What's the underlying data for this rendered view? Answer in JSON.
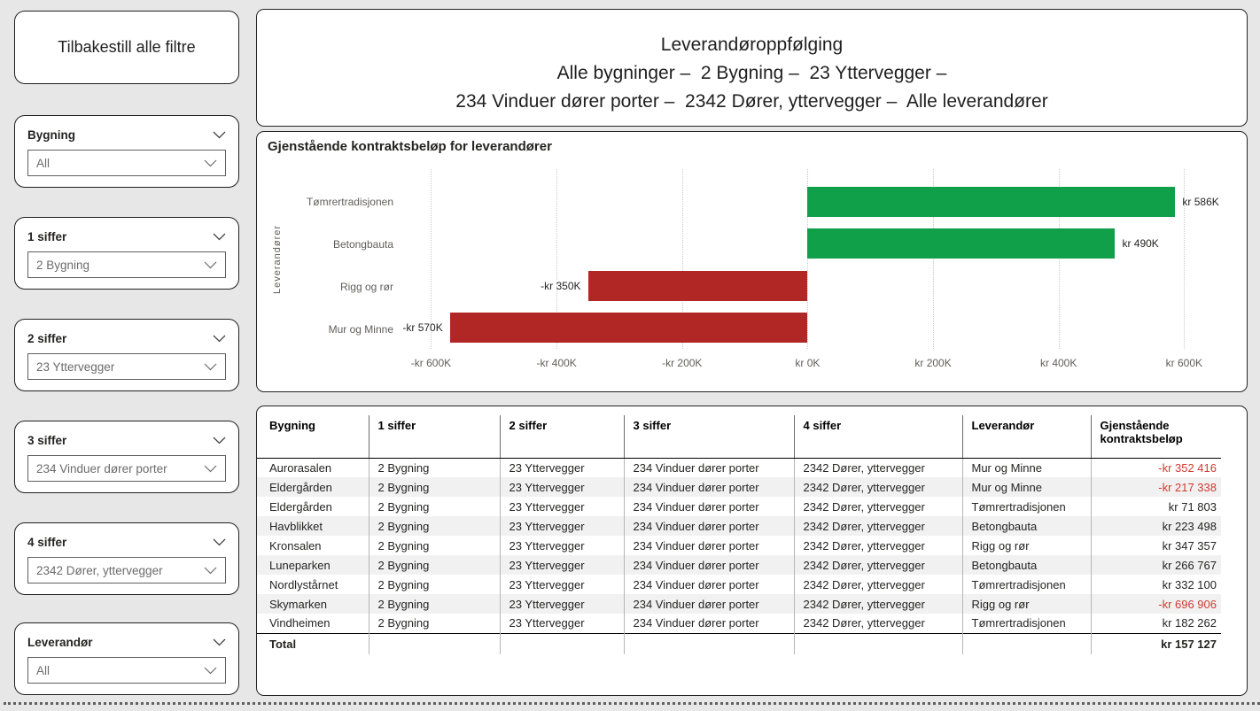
{
  "colors": {
    "background": "#e7e7e7",
    "panel_border": "#252423",
    "positive_bar": "#10a04a",
    "negative_bar": "#b02725",
    "negative_text": "#d03b31"
  },
  "sidebar": {
    "reset_button_label": "Tilbakestill alle filtre",
    "slicers": [
      {
        "label": "Bygning",
        "value": "All"
      },
      {
        "label": "1 siffer",
        "value": "2 Bygning"
      },
      {
        "label": "2 siffer",
        "value": "23 Yttervegger"
      },
      {
        "label": "3 siffer",
        "value": "234 Vinduer dører porter"
      },
      {
        "label": "4 siffer",
        "value": "2342 Dører, yttervegger"
      },
      {
        "label": "Leverandør",
        "value": "All"
      }
    ]
  },
  "header": {
    "title": "Leverandøroppfølging",
    "subtitle_line1": "Alle bygninger –  2 Bygning –  23 Yttervegger –",
    "subtitle_line2": "234 Vinduer dører porter –  2342 Dører, yttervegger –  Alle leverandører"
  },
  "chart_data": {
    "type": "bar",
    "orientation": "horizontal",
    "title": "Gjenstående kontraktsbeløp for leverandører",
    "ylabel": "Leverandører",
    "categories": [
      "Tømrertradisjonen",
      "Betongbauta",
      "Rigg og rør",
      "Mur og Minne"
    ],
    "values": [
      586000,
      490000,
      -350000,
      -570000
    ],
    "value_labels": [
      "kr 586K",
      "kr 490K",
      "-kr 350K",
      "-kr 570K"
    ],
    "xlim": [
      -660000,
      680000
    ],
    "x_ticks": [
      -600000,
      -400000,
      -200000,
      0,
      200000,
      400000,
      600000
    ],
    "x_tick_labels": [
      "-kr 600K",
      "-kr 400K",
      "-kr 200K",
      "kr 0K",
      "kr 200K",
      "kr 400K",
      "kr 600K"
    ],
    "positive_color": "#10a04a",
    "negative_color": "#b02725",
    "grid": "vertical-dotted",
    "legend": "none"
  },
  "table": {
    "columns": [
      "Bygning",
      "1 siffer",
      "2 siffer",
      "3 siffer",
      "4 siffer",
      "Leverandør",
      "Gjenstående kontraktsbeløp"
    ],
    "rows": [
      {
        "cells": [
          "Aurorasalen",
          "2 Bygning",
          "23 Yttervegger",
          "234 Vinduer dører porter",
          "2342 Dører, yttervegger",
          "Mur og Minne"
        ],
        "value": "-kr 352 416",
        "negative": true
      },
      {
        "cells": [
          "Eldergården",
          "2 Bygning",
          "23 Yttervegger",
          "234 Vinduer dører porter",
          "2342 Dører, yttervegger",
          "Mur og Minne"
        ],
        "value": "-kr 217 338",
        "negative": true
      },
      {
        "cells": [
          "Eldergården",
          "2 Bygning",
          "23 Yttervegger",
          "234 Vinduer dører porter",
          "2342 Dører, yttervegger",
          "Tømrertradisjonen"
        ],
        "value": "kr 71 803",
        "negative": false
      },
      {
        "cells": [
          "Havblikket",
          "2 Bygning",
          "23 Yttervegger",
          "234 Vinduer dører porter",
          "2342 Dører, yttervegger",
          "Betongbauta"
        ],
        "value": "kr 223 498",
        "negative": false
      },
      {
        "cells": [
          "Kronsalen",
          "2 Bygning",
          "23 Yttervegger",
          "234 Vinduer dører porter",
          "2342 Dører, yttervegger",
          "Rigg og rør"
        ],
        "value": "kr 347 357",
        "negative": false
      },
      {
        "cells": [
          "Luneparken",
          "2 Bygning",
          "23 Yttervegger",
          "234 Vinduer dører porter",
          "2342 Dører, yttervegger",
          "Betongbauta"
        ],
        "value": "kr 266 767",
        "negative": false
      },
      {
        "cells": [
          "Nordlystårnet",
          "2 Bygning",
          "23 Yttervegger",
          "234 Vinduer dører porter",
          "2342 Dører, yttervegger",
          "Tømrertradisjonen"
        ],
        "value": "kr 332 100",
        "negative": false
      },
      {
        "cells": [
          "Skymarken",
          "2 Bygning",
          "23 Yttervegger",
          "234 Vinduer dører porter",
          "2342 Dører, yttervegger",
          "Rigg og rør"
        ],
        "value": "-kr 696 906",
        "negative": true
      },
      {
        "cells": [
          "Vindheimen",
          "2 Bygning",
          "23 Yttervegger",
          "234 Vinduer dører porter",
          "2342 Dører, yttervegger",
          "Tømrertradisjonen"
        ],
        "value": "kr 182 262",
        "negative": false
      }
    ],
    "total": {
      "label": "Total",
      "value": "kr 157 127"
    }
  }
}
